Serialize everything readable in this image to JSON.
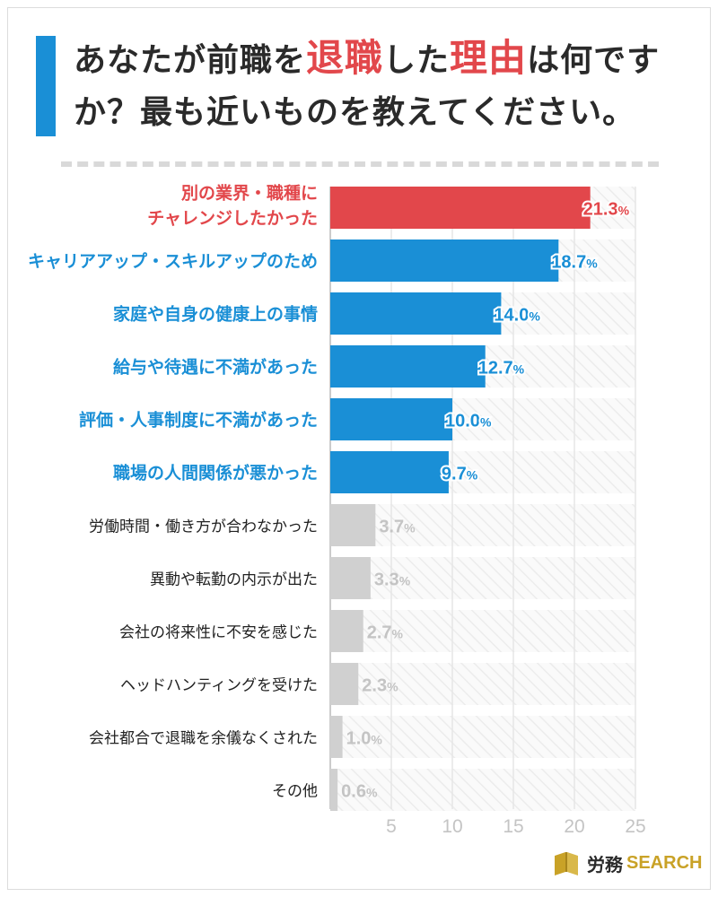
{
  "title": {
    "part1": "あなたが前職を",
    "accent1": "退職",
    "part2": "した",
    "accent2": "理由",
    "part3": "は何です",
    "line2": "か？最も近いものを教えてください。"
  },
  "colors": {
    "highlight": "#e2474b",
    "primary": "#1a8fd6",
    "muted": "#d0d0d0",
    "muted_text": "#c4c4c4",
    "text": "#222222",
    "brand": "#c9a227"
  },
  "logo": {
    "jp": "労務",
    "en": "SEARCH",
    "icon": "book-icon"
  },
  "chart_data": {
    "type": "bar",
    "orientation": "horizontal",
    "categories": [
      "別の業界・職種にチャレンジしたかった",
      "キャリアアップ・スキルアップのため",
      "家庭や自身の健康上の事情",
      "給与や待遇に不満があった",
      "評価・人事制度に不満があった",
      "職場の人間関係が悪かった",
      "労働時間・働き方が合わなかった",
      "異動や転勤の内示が出た",
      "会社の将来性に不安を感じた",
      "ヘッドハンティングを受けた",
      "会社都合で退職を余儀なくされた",
      "その他"
    ],
    "category_lines": [
      [
        "別の業界・職種に",
        "チャレンジしたかった"
      ],
      [
        "キャリアアップ・スキルアップのため"
      ],
      [
        "家庭や自身の健康上の事情"
      ],
      [
        "給与や待遇に不満があった"
      ],
      [
        "評価・人事制度に不満があった"
      ],
      [
        "職場の人間関係が悪かった"
      ],
      [
        "労働時間・働き方が合わなかった"
      ],
      [
        "異動や転勤の内示が出た"
      ],
      [
        "会社の将来性に不安を感じた"
      ],
      [
        "ヘッドハンティングを受けた"
      ],
      [
        "会社都合で退職を余儀なくされた"
      ],
      [
        "その他"
      ]
    ],
    "values": [
      21.3,
      18.7,
      14.0,
      12.7,
      10.0,
      9.7,
      3.7,
      3.3,
      2.7,
      2.3,
      1.0,
      0.6
    ],
    "value_labels": [
      "21.3",
      "18.7",
      "14.0",
      "12.7",
      "10.0",
      "9.7",
      "3.7",
      "3.3",
      "2.7",
      "2.3",
      "1.0",
      "0.6"
    ],
    "unit": "%",
    "highlight": [
      0
    ],
    "primary": [
      1,
      2,
      3,
      4,
      5
    ],
    "xticks": [
      5,
      10,
      15,
      20,
      25
    ],
    "xlim": [
      0,
      25
    ],
    "title": "",
    "xlabel": "",
    "ylabel": ""
  }
}
